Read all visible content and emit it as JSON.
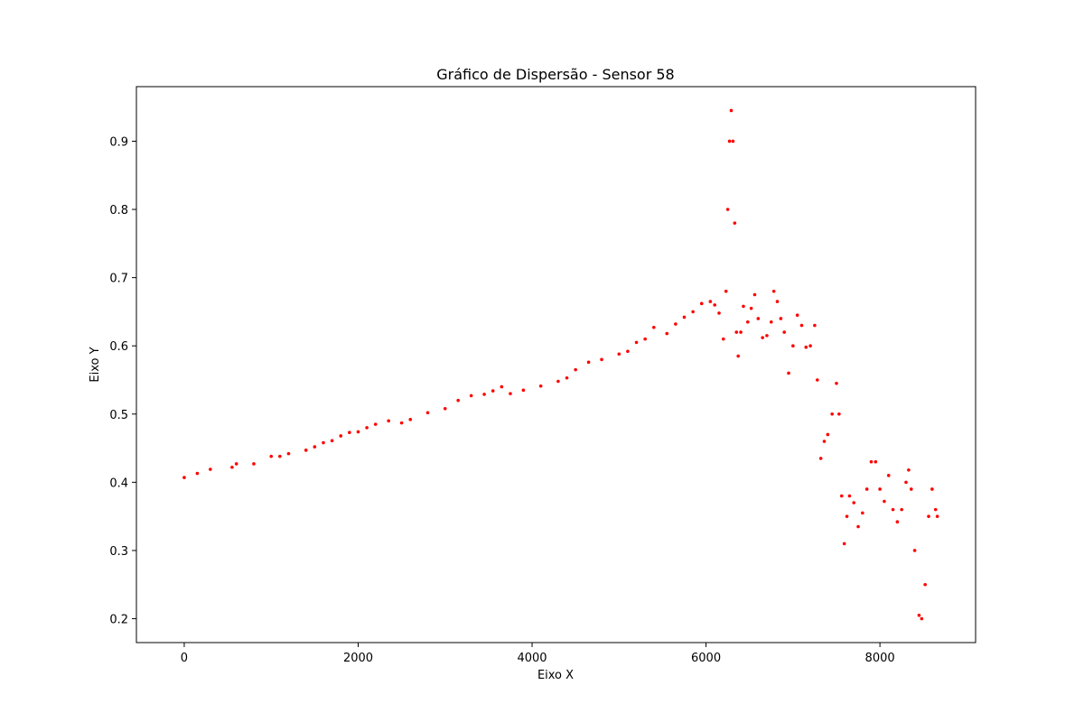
{
  "chart_data": {
    "type": "scatter",
    "title": "Gráfico de Dispersão - Sensor 58",
    "xlabel": "Eixo X",
    "ylabel": "Eixo Y",
    "xlim": [
      -550,
      9100
    ],
    "ylim": [
      0.165,
      0.98
    ],
    "xticks": [
      0,
      2000,
      4000,
      6000,
      8000
    ],
    "yticks": [
      0.2,
      0.3,
      0.4,
      0.5,
      0.6,
      0.7,
      0.8,
      0.9
    ],
    "grid": false,
    "marker_color": "#ff0000",
    "series": [
      {
        "points": [
          [
            0,
            0.407
          ],
          [
            150,
            0.413
          ],
          [
            300,
            0.419
          ],
          [
            550,
            0.422
          ],
          [
            600,
            0.427
          ],
          [
            800,
            0.427
          ],
          [
            1000,
            0.438
          ],
          [
            1100,
            0.438
          ],
          [
            1200,
            0.442
          ],
          [
            1400,
            0.447
          ],
          [
            1500,
            0.452
          ],
          [
            1600,
            0.458
          ],
          [
            1700,
            0.461
          ],
          [
            1800,
            0.468
          ],
          [
            1900,
            0.473
          ],
          [
            2000,
            0.474
          ],
          [
            2100,
            0.48
          ],
          [
            2200,
            0.485
          ],
          [
            2350,
            0.49
          ],
          [
            2500,
            0.487
          ],
          [
            2600,
            0.492
          ],
          [
            2800,
            0.502
          ],
          [
            3000,
            0.508
          ],
          [
            3150,
            0.52
          ],
          [
            3300,
            0.527
          ],
          [
            3450,
            0.529
          ],
          [
            3550,
            0.534
          ],
          [
            3650,
            0.54
          ],
          [
            3750,
            0.53
          ],
          [
            3900,
            0.535
          ],
          [
            4100,
            0.541
          ],
          [
            4300,
            0.548
          ],
          [
            4400,
            0.553
          ],
          [
            4500,
            0.565
          ],
          [
            4650,
            0.576
          ],
          [
            4800,
            0.58
          ],
          [
            5000,
            0.588
          ],
          [
            5100,
            0.592
          ],
          [
            5200,
            0.605
          ],
          [
            5300,
            0.61
          ],
          [
            5400,
            0.627
          ],
          [
            5550,
            0.618
          ],
          [
            5650,
            0.632
          ],
          [
            5750,
            0.642
          ],
          [
            5850,
            0.65
          ],
          [
            5950,
            0.662
          ],
          [
            6050,
            0.665
          ],
          [
            6100,
            0.66
          ],
          [
            6150,
            0.648
          ],
          [
            6200,
            0.61
          ],
          [
            6230,
            0.68
          ],
          [
            6250,
            0.8
          ],
          [
            6270,
            0.9
          ],
          [
            6290,
            0.945
          ],
          [
            6310,
            0.9
          ],
          [
            6330,
            0.78
          ],
          [
            6350,
            0.62
          ],
          [
            6370,
            0.585
          ],
          [
            6400,
            0.62
          ],
          [
            6430,
            0.658
          ],
          [
            6480,
            0.635
          ],
          [
            6520,
            0.655
          ],
          [
            6560,
            0.675
          ],
          [
            6600,
            0.64
          ],
          [
            6650,
            0.612
          ],
          [
            6700,
            0.615
          ],
          [
            6750,
            0.635
          ],
          [
            6780,
            0.68
          ],
          [
            6820,
            0.665
          ],
          [
            6860,
            0.64
          ],
          [
            6900,
            0.62
          ],
          [
            6950,
            0.56
          ],
          [
            7000,
            0.6
          ],
          [
            7050,
            0.645
          ],
          [
            7100,
            0.63
          ],
          [
            7150,
            0.598
          ],
          [
            7200,
            0.6
          ],
          [
            7250,
            0.63
          ],
          [
            7280,
            0.55
          ],
          [
            7320,
            0.435
          ],
          [
            7360,
            0.46
          ],
          [
            7400,
            0.47
          ],
          [
            7450,
            0.5
          ],
          [
            7500,
            0.545
          ],
          [
            7530,
            0.5
          ],
          [
            7560,
            0.38
          ],
          [
            7590,
            0.31
          ],
          [
            7620,
            0.35
          ],
          [
            7650,
            0.38
          ],
          [
            7700,
            0.37
          ],
          [
            7750,
            0.335
          ],
          [
            7800,
            0.355
          ],
          [
            7850,
            0.39
          ],
          [
            7900,
            0.43
          ],
          [
            7950,
            0.43
          ],
          [
            8000,
            0.39
          ],
          [
            8050,
            0.372
          ],
          [
            8100,
            0.41
          ],
          [
            8150,
            0.36
          ],
          [
            8200,
            0.342
          ],
          [
            8250,
            0.36
          ],
          [
            8300,
            0.4
          ],
          [
            8330,
            0.418
          ],
          [
            8360,
            0.39
          ],
          [
            8400,
            0.3
          ],
          [
            8450,
            0.205
          ],
          [
            8480,
            0.2
          ],
          [
            8520,
            0.25
          ],
          [
            8560,
            0.35
          ],
          [
            8600,
            0.39
          ],
          [
            8640,
            0.36
          ],
          [
            8660,
            0.35
          ]
        ]
      }
    ]
  }
}
